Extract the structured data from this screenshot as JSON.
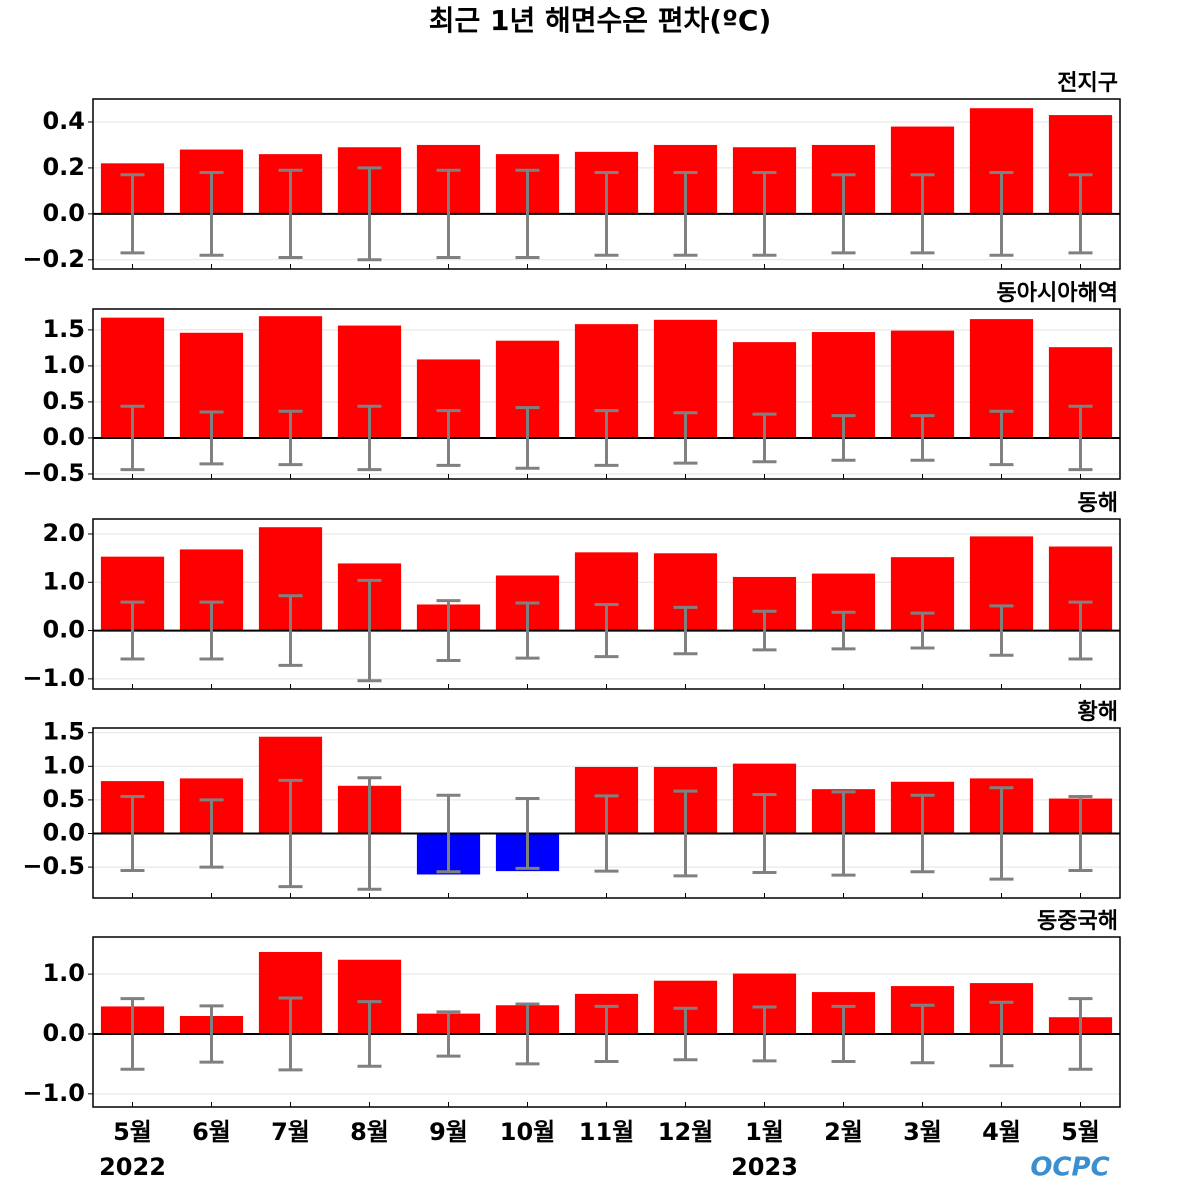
{
  "title": "최근 1년 해면수온 편차(ºC)",
  "categories": [
    "5월",
    "6월",
    "7월",
    "8월",
    "9월",
    "10월",
    "11월",
    "12월",
    "1월",
    "2월",
    "3월",
    "4월",
    "5월"
  ],
  "years": [
    "2022",
    null,
    null,
    null,
    null,
    null,
    null,
    null,
    "2023",
    null,
    null,
    null,
    null
  ],
  "logo": "OCPC",
  "colors": {
    "positive": "#ff0000",
    "negative": "#0000ff",
    "error": "#808080"
  },
  "chart_data": [
    {
      "type": "bar",
      "title": "전지구",
      "values": [
        0.22,
        0.28,
        0.26,
        0.29,
        0.3,
        0.26,
        0.27,
        0.3,
        0.29,
        0.3,
        0.38,
        0.46,
        0.43
      ],
      "errors": [
        0.17,
        0.18,
        0.19,
        0.2,
        0.19,
        0.19,
        0.18,
        0.18,
        0.18,
        0.17,
        0.17,
        0.18,
        0.17
      ],
      "ylim": [
        -0.24,
        0.5
      ],
      "yticks": [
        {
          "value": -0.2,
          "label": "−0.2"
        },
        {
          "value": 0,
          "label": "0.0"
        },
        0.2,
        0.4
      ],
      "grid": true
    },
    {
      "type": "bar",
      "title": "동아시아해역",
      "values": [
        1.67,
        1.46,
        1.69,
        1.56,
        1.09,
        1.35,
        1.58,
        1.64,
        1.33,
        1.47,
        1.49,
        1.65,
        1.26
      ],
      "errors": [
        0.44,
        0.36,
        0.37,
        0.44,
        0.38,
        0.42,
        0.38,
        0.35,
        0.33,
        0.31,
        0.31,
        0.37,
        0.44
      ],
      "ylim": [
        -0.57,
        1.79
      ],
      "yticks": [
        {
          "value": -0.5,
          "label": "−0.5"
        },
        {
          "value": 0,
          "label": "0.0"
        },
        0.5,
        {
          "value": 1,
          "label": "1.0"
        },
        1.5
      ],
      "grid": true
    },
    {
      "type": "bar",
      "title": "동해",
      "values": [
        1.53,
        1.68,
        2.14,
        1.39,
        0.54,
        1.14,
        1.62,
        1.6,
        1.11,
        1.18,
        1.52,
        1.95,
        1.74
      ],
      "errors": [
        0.59,
        0.59,
        0.72,
        1.04,
        0.62,
        0.57,
        0.54,
        0.48,
        0.4,
        0.38,
        0.36,
        0.51,
        0.59
      ],
      "ylim": [
        -1.21,
        2.31
      ],
      "yticks": [
        {
          "value": -1,
          "label": "−1.0"
        },
        {
          "value": 0,
          "label": "0.0"
        },
        {
          "value": 1,
          "label": "1.0"
        },
        {
          "value": 2,
          "label": "2.0"
        }
      ],
      "grid": true
    },
    {
      "type": "bar",
      "title": "황해",
      "values": [
        0.78,
        0.82,
        1.44,
        0.71,
        -0.61,
        -0.56,
        0.99,
        0.99,
        1.04,
        0.66,
        0.77,
        0.82,
        0.52
      ],
      "errors": [
        0.55,
        0.5,
        0.79,
        0.83,
        0.57,
        0.52,
        0.56,
        0.63,
        0.58,
        0.62,
        0.57,
        0.68,
        0.55
      ],
      "ylim": [
        -0.96,
        1.57
      ],
      "yticks": [
        {
          "value": -0.5,
          "label": "−0.5"
        },
        {
          "value": 0,
          "label": "0.0"
        },
        0.5,
        {
          "value": 1,
          "label": "1.0"
        },
        1.5
      ],
      "grid": true
    },
    {
      "type": "bar",
      "title": "동중국해",
      "values": [
        0.46,
        0.3,
        1.37,
        1.24,
        0.34,
        0.48,
        0.67,
        0.89,
        1.01,
        0.7,
        0.8,
        0.85,
        0.28
      ],
      "errors": [
        0.59,
        0.47,
        0.6,
        0.54,
        0.37,
        0.5,
        0.46,
        0.43,
        0.45,
        0.46,
        0.48,
        0.53,
        0.59
      ],
      "ylim": [
        -1.22,
        1.62
      ],
      "yticks": [
        {
          "value": -1,
          "label": "−1.0"
        },
        {
          "value": 0,
          "label": "0.0"
        },
        {
          "value": 1,
          "label": "1.0"
        }
      ],
      "grid": true
    }
  ]
}
